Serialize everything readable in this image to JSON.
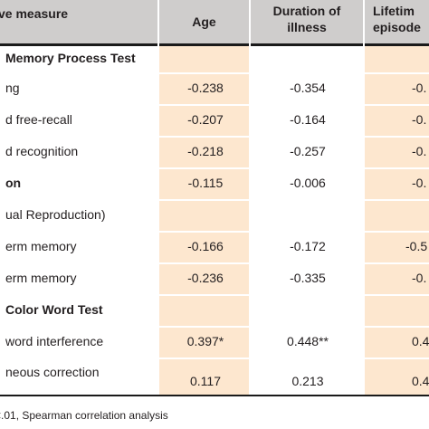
{
  "header": {
    "col_measure": "ve measure",
    "col_age": "Age",
    "col_duration": "Duration of illness",
    "col_duration_line1": "Duration of",
    "col_duration_line2": "illness",
    "col_lifetime_line1": "Lifetim",
    "col_lifetime_line2": "episode"
  },
  "rows": [
    {
      "label": "Memory Process Test",
      "bold": true,
      "age": "",
      "duration": "",
      "lifetime": ""
    },
    {
      "label": "ng",
      "bold": false,
      "age": "-0.238",
      "duration": "-0.354",
      "lifetime": "-0."
    },
    {
      "label": "d free-recall",
      "bold": false,
      "age": "-0.207",
      "duration": "-0.164",
      "lifetime": "-0."
    },
    {
      "label": "d recognition",
      "bold": false,
      "age": "-0.218",
      "duration": "-0.257",
      "lifetime": "-0."
    },
    {
      "label": "on",
      "bold": true,
      "age": "-0.115",
      "duration": "-0.006",
      "lifetime": "-0."
    },
    {
      "label": "ual Reproduction)",
      "bold": false,
      "age": "",
      "duration": "",
      "lifetime": ""
    },
    {
      "label": "erm memory",
      "bold": false,
      "age": "-0.166",
      "duration": "-0.172",
      "lifetime": "-0.5"
    },
    {
      "label": "erm memory",
      "bold": false,
      "age": "-0.236",
      "duration": "-0.335",
      "lifetime": "-0."
    },
    {
      "label": "Color Word Test",
      "bold": true,
      "age": "",
      "duration": "",
      "lifetime": ""
    },
    {
      "label": "word interference",
      "bold": false,
      "age": "0.397*",
      "duration": "0.448**",
      "lifetime": "0.4"
    },
    {
      "label": "neous correction",
      "bold": false,
      "age": "0.117",
      "duration": "0.213",
      "lifetime": "0.4"
    }
  ],
  "footnote": "<.01, Spearman correlation analysis",
  "colors": {
    "header_bg": "#cfcdcc",
    "data_shade": "#fde7cf",
    "rule": "#1a1a1a"
  }
}
